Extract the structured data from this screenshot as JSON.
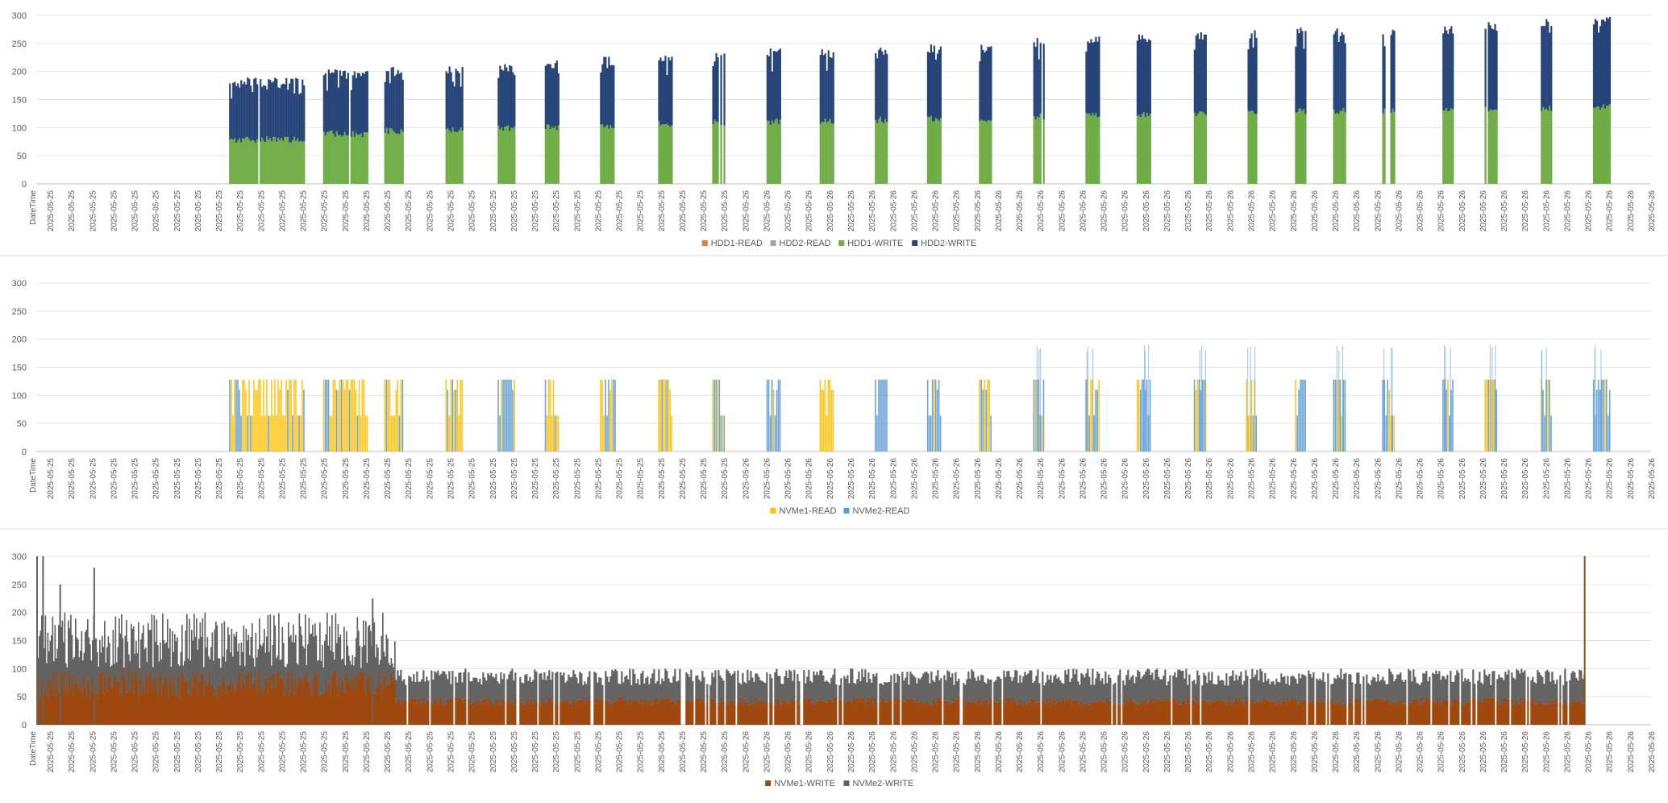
{
  "chart_data": [
    {
      "type": "area",
      "stacked": true,
      "title": "",
      "xlabel": "",
      "ylabel": "",
      "x_axis_label": "DateTime",
      "ylim": [
        0,
        300
      ],
      "yticks": [
        0,
        50,
        100,
        150,
        200,
        250,
        300
      ],
      "grid": true,
      "legend_position": "bottom",
      "x_tick_labels": [
        "2025-05-25",
        "2025-05-25",
        "2025-05-25",
        "2025-05-25",
        "2025-05-25",
        "2025-05-25",
        "2025-05-25",
        "2025-05-25",
        "2025-05-25",
        "2025-05-25",
        "2025-05-25",
        "2025-05-25",
        "2025-05-25",
        "2025-05-25",
        "2025-05-25",
        "2025-05-25",
        "2025-05-25",
        "2025-05-25",
        "2025-05-25",
        "2025-05-25",
        "2025-05-25",
        "2025-05-25",
        "2025-05-25",
        "2025-05-25",
        "2025-05-25",
        "2025-05-25",
        "2025-05-25",
        "2025-05-25",
        "2025-05-25",
        "2025-05-25",
        "2025-05-25",
        "2025-05-25",
        "2025-05-25",
        "2025-05-26",
        "2025-05-26",
        "2025-05-26",
        "2025-05-26",
        "2025-05-26",
        "2025-05-26",
        "2025-05-26",
        "2025-05-26",
        "2025-05-26",
        "2025-05-26",
        "2025-05-26",
        "2025-05-26",
        "2025-05-26",
        "2025-05-26",
        "2025-05-26",
        "2025-05-26",
        "2025-05-26",
        "2025-05-26",
        "2025-05-26",
        "2025-05-26",
        "2025-05-26",
        "2025-05-26",
        "2025-05-26",
        "2025-05-26",
        "2025-05-26",
        "2025-05-26",
        "2025-05-26",
        "2025-05-26",
        "2025-05-26",
        "2025-05-26",
        "2025-05-26",
        "2025-05-26",
        "2025-05-26",
        "2025-05-26",
        "2025-05-26",
        "2025-05-26",
        "2025-05-26",
        "2025-05-26",
        "2025-05-26",
        "2025-05-26",
        "2025-05-26",
        "2025-05-26",
        "2025-05-26",
        "2025-05-26"
      ],
      "legend": [
        {
          "name": "HDD1-READ",
          "color": "#ED7D31"
        },
        {
          "name": "HDD2-READ",
          "color": "#A5A5A5"
        },
        {
          "name": "HDD1-WRITE",
          "color": "#70AD47"
        },
        {
          "name": "HDD2-WRITE",
          "color": "#264478"
        }
      ],
      "bursts": [
        {
          "start": 0.1194,
          "end": 0.1656,
          "bottom": 85,
          "top": 190
        },
        {
          "start": 0.1776,
          "end": 0.2049,
          "bottom": 95,
          "top": 205
        },
        {
          "start": 0.2155,
          "end": 0.2273,
          "bottom": 100,
          "top": 210
        },
        {
          "start": 0.2534,
          "end": 0.2634,
          "bottom": 103,
          "top": 212
        },
        {
          "start": 0.2857,
          "end": 0.2957,
          "bottom": 105,
          "top": 218
        },
        {
          "start": 0.3149,
          "end": 0.3236,
          "bottom": 106,
          "top": 222
        },
        {
          "start": 0.3491,
          "end": 0.359,
          "bottom": 110,
          "top": 228
        },
        {
          "start": 0.3851,
          "end": 0.3932,
          "bottom": 112,
          "top": 232
        },
        {
          "start": 0.4186,
          "end": 0.4261,
          "bottom": 114,
          "top": 240
        },
        {
          "start": 0.4522,
          "end": 0.4609,
          "bottom": 116,
          "top": 242
        },
        {
          "start": 0.4851,
          "end": 0.4938,
          "bottom": 118,
          "top": 242
        },
        {
          "start": 0.5193,
          "end": 0.5267,
          "bottom": 120,
          "top": 245
        },
        {
          "start": 0.5516,
          "end": 0.5596,
          "bottom": 122,
          "top": 248
        },
        {
          "start": 0.5838,
          "end": 0.5913,
          "bottom": 122,
          "top": 250
        },
        {
          "start": 0.6174,
          "end": 0.6242,
          "bottom": 126,
          "top": 265
        },
        {
          "start": 0.6497,
          "end": 0.6578,
          "bottom": 128,
          "top": 268
        },
        {
          "start": 0.6814,
          "end": 0.6901,
          "bottom": 130,
          "top": 268
        },
        {
          "start": 0.7168,
          "end": 0.7242,
          "bottom": 132,
          "top": 272
        },
        {
          "start": 0.7491,
          "end": 0.7559,
          "bottom": 133,
          "top": 275
        },
        {
          "start": 0.7795,
          "end": 0.7857,
          "bottom": 135,
          "top": 278
        },
        {
          "start": 0.8031,
          "end": 0.8106,
          "bottom": 136,
          "top": 280
        },
        {
          "start": 0.8335,
          "end": 0.841,
          "bottom": 137,
          "top": 280
        },
        {
          "start": 0.8708,
          "end": 0.877,
          "bottom": 138,
          "top": 282
        },
        {
          "start": 0.8969,
          "end": 0.9043,
          "bottom": 140,
          "top": 290
        },
        {
          "start": 0.9317,
          "end": 0.9379,
          "bottom": 140,
          "top": 295
        },
        {
          "start": 0.964,
          "end": 0.9745,
          "bottom": 142,
          "top": 298
        }
      ]
    },
    {
      "type": "area",
      "stacked": true,
      "title": "",
      "xlabel": "",
      "ylabel": "",
      "x_axis_label": "DateTime",
      "ylim": [
        0,
        300
      ],
      "yticks": [
        0,
        50,
        100,
        150,
        200,
        250,
        300
      ],
      "grid": true,
      "legend_position": "bottom",
      "legend": [
        {
          "name": "NVMe1-READ",
          "color": "#FFC000"
        },
        {
          "name": "NVMe2-READ",
          "color": "#5B9BD5"
        }
      ],
      "bursts": [
        {
          "start": 0.1194,
          "end": 0.1656,
          "level": 64,
          "peak": 128,
          "primary": "NVMe1-READ"
        },
        {
          "start": 0.1776,
          "end": 0.2049,
          "level": 64,
          "peak": 128,
          "primary": "NVMe1-READ"
        },
        {
          "start": 0.2155,
          "end": 0.2273,
          "level": 64,
          "peak": 128,
          "primary": "NVMe1-READ"
        },
        {
          "start": 0.2534,
          "end": 0.2634,
          "level": 64,
          "peak": 128,
          "primary": "NVMe1-READ"
        },
        {
          "start": 0.2857,
          "end": 0.2957,
          "level": 64,
          "peak": 128,
          "primary": "NVMe2-READ"
        },
        {
          "start": 0.3149,
          "end": 0.3236,
          "level": 64,
          "peak": 128,
          "primary": "NVMe1-READ"
        },
        {
          "start": 0.3491,
          "end": 0.359,
          "level": 64,
          "peak": 128,
          "primary": "NVMe1-READ"
        },
        {
          "start": 0.3851,
          "end": 0.3932,
          "level": 64,
          "peak": 128,
          "primary": "NVMe1-READ"
        },
        {
          "start": 0.4186,
          "end": 0.4261,
          "level": 64,
          "peak": 128,
          "primary": "NVMe2-READ"
        },
        {
          "start": 0.4522,
          "end": 0.4609,
          "level": 64,
          "peak": 128,
          "primary": "NVMe2-READ"
        },
        {
          "start": 0.4851,
          "end": 0.4938,
          "level": 64,
          "peak": 128,
          "primary": "NVMe1-READ"
        },
        {
          "start": 0.5193,
          "end": 0.5267,
          "level": 64,
          "peak": 128,
          "primary": "NVMe2-READ"
        },
        {
          "start": 0.5516,
          "end": 0.5596,
          "level": 64,
          "peak": 128,
          "primary": "NVMe2-READ"
        },
        {
          "start": 0.5838,
          "end": 0.5913,
          "level": 64,
          "peak": 128,
          "primary": "NVMe2-READ"
        },
        {
          "start": 0.6174,
          "end": 0.6242,
          "level": 64,
          "peak": 190,
          "primary": "NVMe2-READ"
        },
        {
          "start": 0.6497,
          "end": 0.6578,
          "level": 64,
          "peak": 190,
          "primary": "NVMe2-READ"
        },
        {
          "start": 0.6814,
          "end": 0.6901,
          "level": 64,
          "peak": 190,
          "primary": "NVMe2-READ"
        },
        {
          "start": 0.7168,
          "end": 0.7242,
          "level": 64,
          "peak": 190,
          "primary": "NVMe2-READ"
        },
        {
          "start": 0.7491,
          "end": 0.7559,
          "level": 64,
          "peak": 190,
          "primary": "NVMe1-READ"
        },
        {
          "start": 0.7795,
          "end": 0.7857,
          "level": 64,
          "peak": 128,
          "primary": "NVMe2-READ"
        },
        {
          "start": 0.8031,
          "end": 0.8106,
          "level": 64,
          "peak": 190,
          "primary": "NVMe2-READ"
        },
        {
          "start": 0.8335,
          "end": 0.841,
          "level": 64,
          "peak": 190,
          "primary": "NVMe2-READ"
        },
        {
          "start": 0.8708,
          "end": 0.877,
          "level": 64,
          "peak": 190,
          "primary": "NVMe2-READ"
        },
        {
          "start": 0.8969,
          "end": 0.9043,
          "level": 64,
          "peak": 190,
          "primary": "NVMe1-READ"
        },
        {
          "start": 0.9317,
          "end": 0.9379,
          "level": 64,
          "peak": 190,
          "primary": "NVMe2-READ"
        },
        {
          "start": 0.964,
          "end": 0.9745,
          "level": 64,
          "peak": 190,
          "primary": "NVMe2-READ"
        }
      ]
    },
    {
      "type": "area",
      "stacked": true,
      "title": "",
      "xlabel": "",
      "ylabel": "",
      "x_axis_label": "DateTime",
      "ylim": [
        0,
        300
      ],
      "yticks": [
        0,
        50,
        100,
        150,
        200,
        250,
        300
      ],
      "grid": true,
      "legend_position": "bottom",
      "legend": [
        {
          "name": "NVMe1-WRITE",
          "color": "#9E480E"
        },
        {
          "name": "NVMe2-WRITE",
          "color": "#636363"
        }
      ],
      "segments": [
        {
          "start": 0.0,
          "end": 0.2223,
          "nvme1_avg": 70,
          "total_avg": 145,
          "nvme1_range": [
            45,
            100
          ],
          "total_range": [
            100,
            200
          ]
        },
        {
          "start": 0.2223,
          "end": 0.9584,
          "nvme1_avg": 45,
          "total_avg": 90,
          "nvme1_range": [
            35,
            50
          ],
          "total_range": [
            70,
            100
          ]
        }
      ],
      "spikes": [
        {
          "x": 0.0,
          "value": 300
        },
        {
          "x": 0.0037,
          "value": 300
        },
        {
          "x": 0.0354,
          "value": 280
        },
        {
          "x": 0.0143,
          "value": 250
        },
        {
          "x": 0.2078,
          "value": 225
        },
        {
          "x": 0.9584,
          "value": 300
        }
      ]
    }
  ]
}
